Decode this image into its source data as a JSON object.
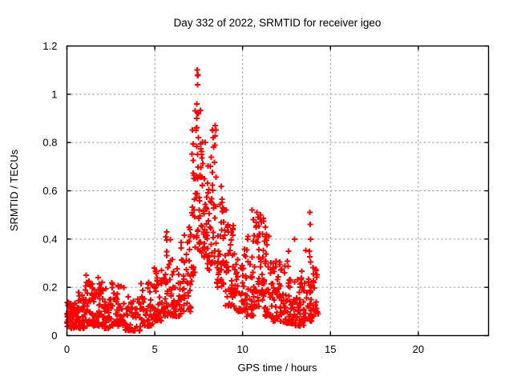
{
  "chart_data": {
    "type": "scatter",
    "title": "Day 332 of 2022, SRMTID for receiver igeo",
    "xlabel": "GPS time / hours",
    "ylabel": "SRMTID / TECUs",
    "xlim": [
      0,
      24
    ],
    "ylim": [
      0,
      1.2
    ],
    "xticks": {
      "values": [
        0,
        5,
        10,
        15,
        20
      ],
      "labels": [
        "0",
        "5",
        "10",
        "15",
        "20"
      ]
    },
    "yticks": {
      "values": [
        0,
        0.2,
        0.4,
        0.6,
        0.8,
        1,
        1.2
      ],
      "labels": [
        "0",
        "0.2",
        "0.4",
        "0.6",
        "0.8",
        "1",
        "1.2"
      ]
    },
    "grid": true,
    "grid_style": "dashed",
    "grid_color": "#9a9a9a",
    "frame_color": "#000000",
    "background_color": "#ffffff",
    "legend": "none",
    "marker": {
      "shape": "plus",
      "color": "#ff0000",
      "size": 7,
      "stroke_width": 2
    },
    "x_data_range": [
      0,
      14.3
    ],
    "peak_point": {
      "x": 7.43,
      "y": 1.1
    },
    "seed": 1332,
    "cluster_fields": [
      "t_start",
      "t_end",
      "n_points",
      "y_min",
      "y_max",
      "low_bias_power"
    ],
    "clusters": [
      [
        0.0,
        0.5,
        55,
        0.03,
        0.14,
        1.5
      ],
      [
        0.5,
        1.0,
        48,
        0.03,
        0.18,
        1.7
      ],
      [
        1.0,
        1.35,
        32,
        0.04,
        0.26,
        1.9
      ],
      [
        1.35,
        1.9,
        45,
        0.04,
        0.24,
        1.9
      ],
      [
        1.9,
        2.5,
        42,
        0.03,
        0.2,
        1.8
      ],
      [
        2.5,
        3.3,
        52,
        0.04,
        0.22,
        1.8
      ],
      [
        3.3,
        4.2,
        50,
        0.02,
        0.17,
        1.5
      ],
      [
        4.2,
        4.9,
        42,
        0.04,
        0.23,
        1.7
      ],
      [
        4.9,
        5.5,
        42,
        0.06,
        0.3,
        1.8
      ],
      [
        5.5,
        5.9,
        30,
        0.08,
        0.42,
        1.9
      ],
      [
        5.9,
        6.5,
        42,
        0.08,
        0.34,
        1.8
      ],
      [
        6.5,
        7.1,
        46,
        0.1,
        0.42,
        1.7
      ],
      [
        7.1,
        7.35,
        26,
        0.25,
        0.95,
        1.4
      ],
      [
        7.35,
        7.6,
        30,
        0.35,
        1.1,
        1.3
      ],
      [
        7.6,
        7.9,
        30,
        0.3,
        0.82,
        1.5
      ],
      [
        7.9,
        8.2,
        30,
        0.27,
        0.72,
        1.5
      ],
      [
        8.2,
        8.5,
        28,
        0.3,
        0.87,
        1.6
      ],
      [
        8.5,
        9.0,
        42,
        0.2,
        0.62,
        1.6
      ],
      [
        9.0,
        9.6,
        46,
        0.12,
        0.46,
        1.7
      ],
      [
        9.6,
        10.2,
        46,
        0.1,
        0.36,
        1.7
      ],
      [
        10.2,
        10.7,
        40,
        0.08,
        0.42,
        1.8
      ],
      [
        10.7,
        11.2,
        42,
        0.12,
        0.52,
        1.8
      ],
      [
        11.2,
        11.7,
        40,
        0.08,
        0.46,
        1.9
      ],
      [
        11.7,
        12.3,
        46,
        0.06,
        0.33,
        1.8
      ],
      [
        12.3,
        12.9,
        46,
        0.05,
        0.31,
        1.8
      ],
      [
        12.9,
        13.5,
        46,
        0.04,
        0.27,
        1.8
      ],
      [
        13.5,
        14.0,
        36,
        0.06,
        0.36,
        1.8
      ],
      [
        14.0,
        14.3,
        20,
        0.08,
        0.3,
        1.5
      ]
    ],
    "highlight_points": [
      [
        7.42,
        1.1
      ],
      [
        7.46,
        1.08
      ],
      [
        7.44,
        1.04
      ],
      [
        7.4,
        0.96
      ],
      [
        7.48,
        0.92
      ],
      [
        8.3,
        0.85
      ],
      [
        8.33,
        0.82
      ],
      [
        8.36,
        0.78
      ],
      [
        5.63,
        0.41
      ],
      [
        5.68,
        0.43
      ],
      [
        6.95,
        0.45
      ],
      [
        7.0,
        0.44
      ],
      [
        9.05,
        0.52
      ],
      [
        9.15,
        0.45
      ],
      [
        9.2,
        0.43
      ],
      [
        10.55,
        0.52
      ],
      [
        10.6,
        0.48
      ],
      [
        10.82,
        0.51
      ],
      [
        10.88,
        0.49
      ],
      [
        11.02,
        0.5
      ],
      [
        11.06,
        0.47
      ],
      [
        11.3,
        0.45
      ],
      [
        11.35,
        0.42
      ],
      [
        12.62,
        0.35
      ],
      [
        12.95,
        0.4
      ],
      [
        13.82,
        0.51
      ],
      [
        13.84,
        0.46
      ],
      [
        13.86,
        0.4
      ],
      [
        13.8,
        0.35
      ],
      [
        1.1,
        0.25
      ],
      [
        1.78,
        0.24
      ],
      [
        2.0,
        0.22
      ],
      [
        4.65,
        0.22
      ]
    ]
  }
}
